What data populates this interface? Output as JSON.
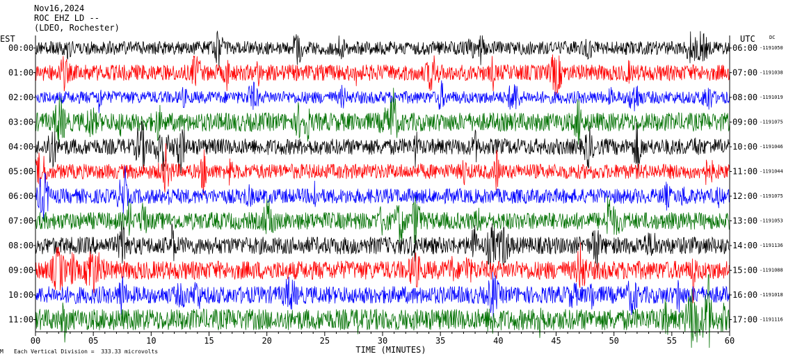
{
  "header": {
    "date": "Nov16,2024",
    "station": "ROC EHZ LD --",
    "network": "(LDEO, Rochester)"
  },
  "left_zone": "EST",
  "right_zone": "UTC",
  "dc_label": "DC",
  "footer": {
    "scale_note": "Each Vertical Division =  333.33 microvolts"
  },
  "chart_data": {
    "type": "line",
    "title": "Nov16,2024",
    "xlabel": "TIME (MINUTES)",
    "ylabel": "",
    "xlim": [
      0,
      60
    ],
    "x_ticks": [
      "00",
      "05",
      "10",
      "15",
      "20",
      "25",
      "30",
      "35",
      "40",
      "45",
      "50",
      "55",
      "60"
    ],
    "trace_colors": [
      "#000000",
      "#ff0000",
      "#0000ff",
      "#007000"
    ],
    "rows": [
      {
        "est": "00:00",
        "utc": "06:00",
        "dc": "-1191050",
        "color": "#000000",
        "amp": 0.55
      },
      {
        "est": "01:00",
        "utc": "07:00",
        "dc": "-1191038",
        "color": "#ff0000",
        "amp": 0.65
      },
      {
        "est": "02:00",
        "utc": "08:00",
        "dc": "-1191019",
        "color": "#0000ff",
        "amp": 0.5
      },
      {
        "est": "03:00",
        "utc": "09:00",
        "dc": "-1191075",
        "color": "#007000",
        "amp": 0.75
      },
      {
        "est": "04:00",
        "utc": "10:00",
        "dc": "-1191046",
        "color": "#000000",
        "amp": 0.65
      },
      {
        "est": "05:00",
        "utc": "11:00",
        "dc": "-1191044",
        "color": "#ff0000",
        "amp": 0.6
      },
      {
        "est": "06:00",
        "utc": "12:00",
        "dc": "-1191075",
        "color": "#0000ff",
        "amp": 0.6
      },
      {
        "est": "07:00",
        "utc": "13:00",
        "dc": "-1191053",
        "color": "#007000",
        "amp": 0.7
      },
      {
        "est": "08:00",
        "utc": "14:00",
        "dc": "-1191136",
        "color": "#000000",
        "amp": 0.7
      },
      {
        "est": "09:00",
        "utc": "15:00",
        "dc": "-1191088",
        "color": "#ff0000",
        "amp": 0.75
      },
      {
        "est": "10:00",
        "utc": "16:00",
        "dc": "-1191018",
        "color": "#0000ff",
        "amp": 0.7
      },
      {
        "est": "11:00",
        "utc": "17:00",
        "dc": "-1191116",
        "color": "#007000",
        "amp": 0.85
      }
    ]
  }
}
